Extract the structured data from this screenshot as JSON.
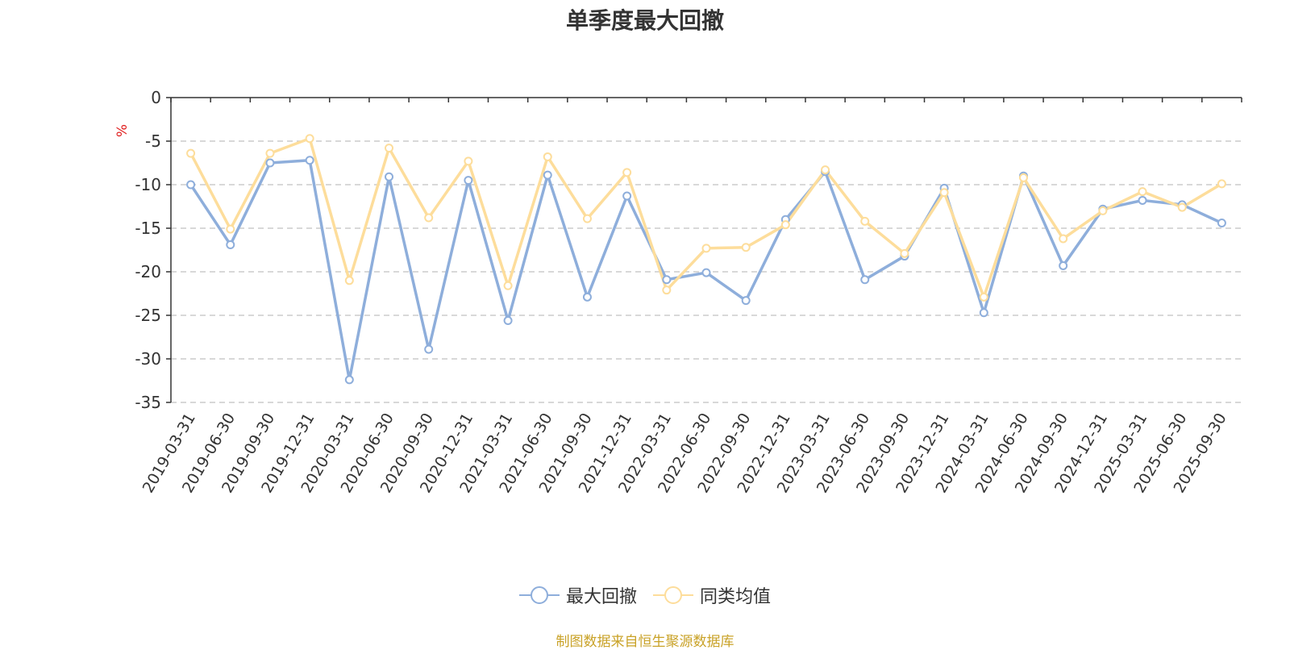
{
  "chart_data": {
    "type": "line",
    "title": "单季度最大回撤",
    "ylabel": "%",
    "xlabel": "",
    "ylim": [
      -35,
      0
    ],
    "yticks": [
      0,
      -5,
      -10,
      -15,
      -20,
      -25,
      -30,
      -35
    ],
    "grid": true,
    "legend_position": "bottom-center",
    "categories": [
      "2019-03-31",
      "2019-06-30",
      "2019-09-30",
      "2019-12-31",
      "2020-03-31",
      "2020-06-30",
      "2020-09-30",
      "2020-12-31",
      "2021-03-31",
      "2021-06-30",
      "2021-09-30",
      "2021-12-31",
      "2022-03-31",
      "2022-06-30",
      "2022-09-30",
      "2022-12-31",
      "2023-03-31",
      "2023-06-30",
      "2023-09-30",
      "2023-12-31",
      "2024-03-31",
      "2024-06-30",
      "2024-09-30",
      "2024-12-31",
      "2025-03-31",
      "2025-06-30",
      "2025-09-30"
    ],
    "series": [
      {
        "name": "最大回撤",
        "color": "#8eaedb",
        "values": [
          -10.0,
          -16.9,
          -7.5,
          -7.2,
          -32.4,
          -9.1,
          -28.9,
          -9.5,
          -25.6,
          -8.9,
          -22.9,
          -11.3,
          -20.9,
          -20.1,
          -23.3,
          -14.0,
          -8.5,
          -20.9,
          -18.2,
          -10.4,
          -24.7,
          -9.0,
          -19.3,
          -12.8,
          -11.8,
          -12.3,
          -14.4
        ]
      },
      {
        "name": "同类均值",
        "color": "#fddd9b",
        "values": [
          -6.4,
          -15.1,
          -6.4,
          -4.7,
          -21.0,
          -5.8,
          -13.8,
          -7.3,
          -21.6,
          -6.8,
          -13.9,
          -8.6,
          -22.1,
          -17.3,
          -17.2,
          -14.6,
          -8.3,
          -14.2,
          -17.9,
          -10.9,
          -22.9,
          -9.2,
          -16.2,
          -13.0,
          -10.8,
          -12.6,
          -9.9
        ]
      }
    ]
  },
  "legend": {
    "items": [
      "最大回撤",
      "同类均值"
    ]
  },
  "footer": {
    "source": "制图数据来自恒生聚源数据库"
  }
}
